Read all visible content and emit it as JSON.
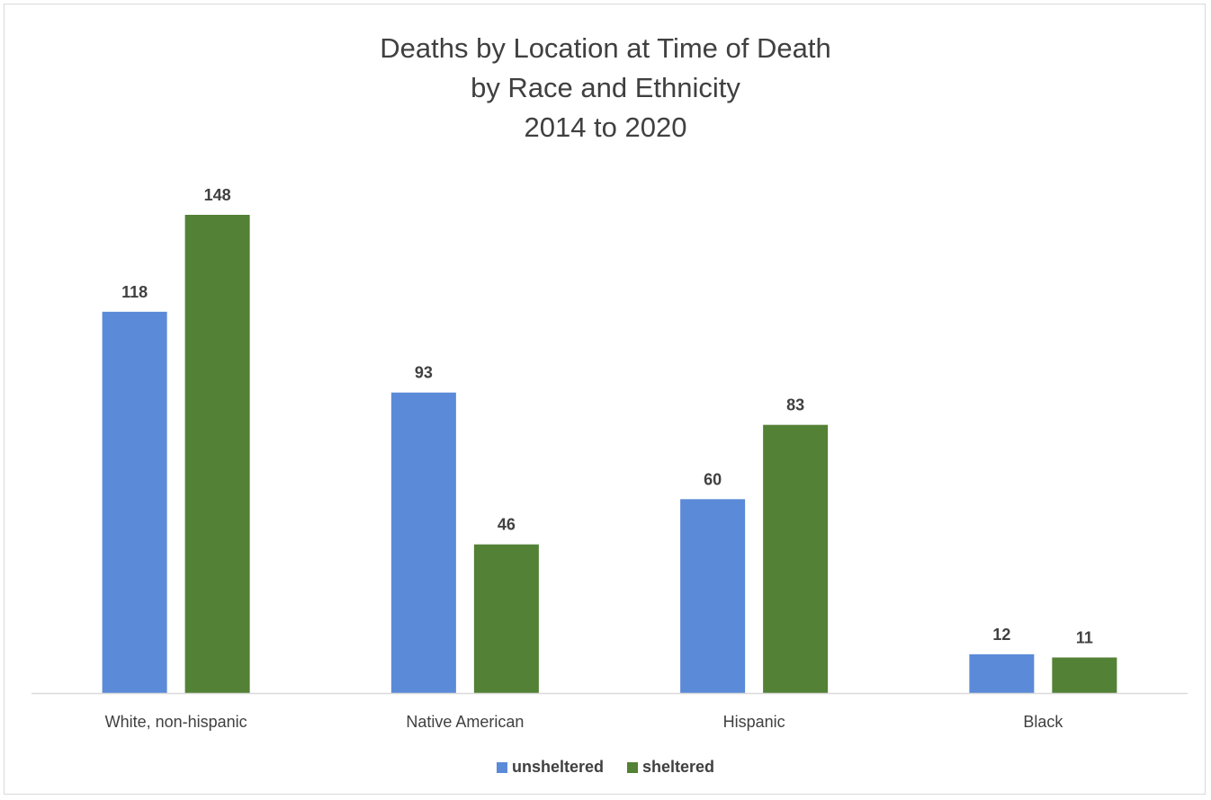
{
  "chart_data": {
    "type": "bar",
    "title_lines": [
      "Deaths by Location at Time of Death",
      "by Race and Ethnicity",
      "2014 to 2020"
    ],
    "categories": [
      "White, non-hispanic",
      "Native American",
      "Hispanic",
      "Black"
    ],
    "series": [
      {
        "name": "unsheltered",
        "color": "#5b8ad8",
        "values": [
          118,
          93,
          60,
          12
        ]
      },
      {
        "name": "sheltered",
        "color": "#538135",
        "values": [
          148,
          46,
          83,
          11
        ]
      }
    ],
    "ylim": [
      0,
      160
    ],
    "gridlines": false,
    "data_labels": true,
    "legend_position": "bottom",
    "xlabel": "",
    "ylabel": ""
  }
}
